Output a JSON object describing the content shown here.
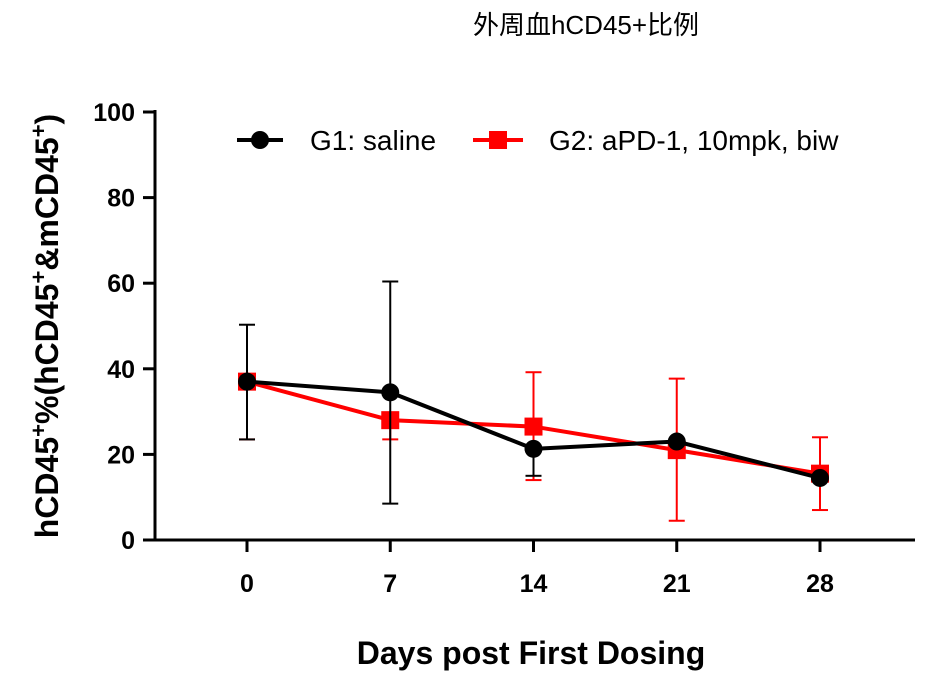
{
  "chart_data": {
    "type": "line",
    "title": "外周血hCD45+比例",
    "xlabel": "Days post First Dosing",
    "ylabel": {
      "parts": [
        {
          "text": "hCD45"
        },
        {
          "text": "+",
          "sup": true
        },
        {
          "text": "%(hCD45"
        },
        {
          "text": "+",
          "sup": true
        },
        {
          "text": "&mCD45"
        },
        {
          "text": "+",
          "sup": true
        },
        {
          "text": ")"
        }
      ]
    },
    "x": [
      0,
      7,
      14,
      21,
      28
    ],
    "x_tick_labels": [
      "0",
      "7",
      "14",
      "21",
      "28"
    ],
    "ylim": [
      0,
      100
    ],
    "y_ticks": [
      0,
      20,
      40,
      60,
      80,
      100
    ],
    "y_tick_labels": [
      "0",
      "20",
      "40",
      "60",
      "80",
      "100"
    ],
    "legend_position": "top",
    "series": [
      {
        "name": "G1: saline",
        "color": "#000000",
        "marker": "circle",
        "values": [
          37,
          34.5,
          21.3,
          23,
          14.5
        ],
        "error_low": [
          23.5,
          8.5,
          15,
          23,
          14.5
        ],
        "error_high": [
          50.3,
          60.4,
          21.3,
          23,
          14.5
        ]
      },
      {
        "name": "G2: aPD-1, 10mpk, biw",
        "color": "#ff0000",
        "marker": "square",
        "values": [
          37,
          28,
          26.5,
          21,
          15.5
        ],
        "error_low": [
          23.5,
          23.5,
          14,
          4.5,
          7
        ],
        "error_high": [
          37,
          28,
          39.2,
          37.7,
          24
        ]
      }
    ]
  }
}
